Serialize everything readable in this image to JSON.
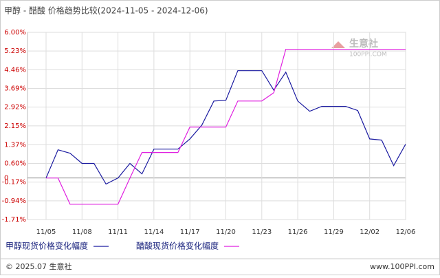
{
  "chart_data": {
    "type": "line",
    "title": "甲醇 - 醋酸 价格趋势比较(2024-11-05 - 2024-12-06)",
    "categories": [
      "11/05",
      null,
      null,
      "11/08",
      null,
      null,
      "11/11",
      null,
      null,
      "11/14",
      null,
      null,
      "11/17",
      null,
      null,
      "11/20",
      null,
      null,
      "11/23",
      null,
      null,
      "11/26",
      null,
      null,
      "11/29",
      null,
      null,
      "12/02",
      null,
      null,
      "12/06"
    ],
    "series": [
      {
        "name": "甲醇现货价格变化幅度",
        "color": "#1a1aa0",
        "values": [
          0,
          1.16,
          1.02,
          0.6,
          0.6,
          -0.25,
          0,
          0.6,
          0.17,
          1.19,
          1.19,
          1.19,
          1.61,
          2.18,
          3.17,
          3.2,
          4.42,
          4.42,
          4.42,
          3.62,
          4.36,
          3.17,
          2.75,
          2.95,
          2.95,
          2.95,
          2.78,
          1.61,
          1.56,
          0.51,
          1.39
        ]
      },
      {
        "name": "醋酸现货价格变化幅度",
        "color": "#e020e0",
        "values": [
          0,
          0,
          -1.08,
          -1.08,
          -1.08,
          -1.08,
          -1.08,
          0,
          1.05,
          1.05,
          1.05,
          1.05,
          2.1,
          2.1,
          2.1,
          2.1,
          3.17,
          3.17,
          3.17,
          3.51,
          5.3,
          5.3,
          5.3,
          5.3,
          5.3,
          5.3,
          5.3,
          5.3,
          5.3,
          5.3,
          5.3
        ]
      }
    ],
    "ylim": [
      -1.71,
      6.0
    ],
    "yticks": [
      {
        "value": 6.0,
        "label": "6.00%"
      },
      {
        "value": 5.23,
        "label": "5.23%"
      },
      {
        "value": 4.46,
        "label": "4.46%"
      },
      {
        "value": 3.69,
        "label": "3.69%"
      },
      {
        "value": 2.92,
        "label": "2.92%"
      },
      {
        "value": 2.15,
        "label": "2.15%"
      },
      {
        "value": 1.37,
        "label": "1.37%"
      },
      {
        "value": 0.6,
        "label": "0.60%"
      },
      0,
      {
        "value": -0.17,
        "label": "-0.17%"
      },
      {
        "value": -0.94,
        "label": "-0.94%"
      },
      {
        "value": -1.71,
        "label": "-1.71%"
      }
    ],
    "grid": true,
    "watermark": {
      "name": "生意社",
      "site": "100PPI.COM"
    },
    "footer_left": "© 2025.07 生意社",
    "footer_right": "www.100PPI.com"
  }
}
